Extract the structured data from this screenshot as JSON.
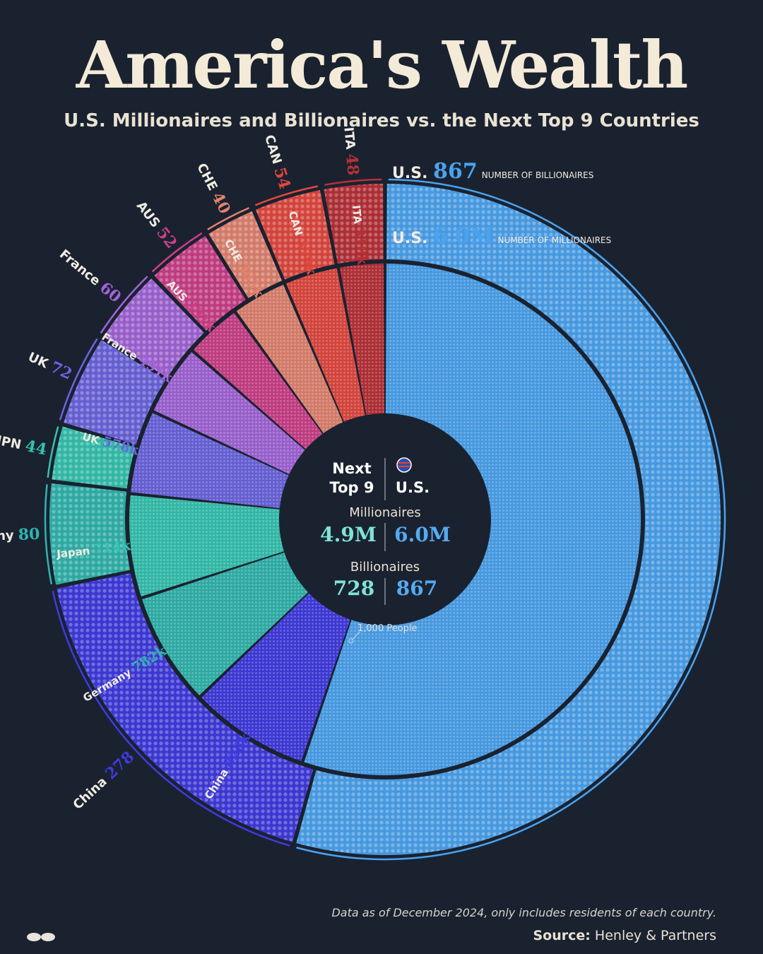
{
  "title": "America's Wealth",
  "subtitle": "U.S. Millionaires and Billionaires vs. the Next Top 9 Countries",
  "footnote": "Data as of December 2024, only includes residents of each country.",
  "source_label": "Source:",
  "source_value": "Henley & Partners",
  "center": {
    "col_left": [
      "Next",
      "Top 9"
    ],
    "col_right": "U.S.",
    "millionaires_label": "Millionaires",
    "millionaires_left": "4.9M",
    "millionaires_right": "6.0M",
    "billionaires_label": "Billionaires",
    "billionaires_left": "728",
    "billionaires_right": "867"
  },
  "dot_annotation": "1,000 People",
  "outer_ring_caption": "NUMBER OF BILLIONAIRES",
  "inner_ring_caption": "NUMBER OF MILLIONAIRES",
  "colors": {
    "background": "#1a2230",
    "us": "#4aa3ef",
    "china": "#3f3ae0",
    "germany": "#2fb5ad",
    "japan": "#33c3b0",
    "uk": "#6a64e0",
    "france": "#a264d8",
    "australia": "#cc3e88",
    "switzerland": "#e2826e",
    "canada": "#e2473d",
    "italy": "#b83036"
  },
  "chart_data": [
    {
      "type": "pie",
      "ring": "outer",
      "title": "NUMBER OF BILLIONAIRES",
      "categories": [
        "U.S.",
        "China",
        "Germany",
        "JPN",
        "UK",
        "France",
        "AUS",
        "CHE",
        "CAN",
        "ITA"
      ],
      "labels": [
        "867",
        "278",
        "80",
        "44",
        "72",
        "60",
        "52",
        "40",
        "54",
        "48"
      ],
      "values": [
        867,
        278,
        80,
        44,
        72,
        60,
        52,
        40,
        54,
        48
      ]
    },
    {
      "type": "pie",
      "ring": "inner",
      "title": "NUMBER OF MILLIONAIRES",
      "categories": [
        "U.S.",
        "China",
        "Germany",
        "Japan",
        "UK",
        "France",
        "AUS",
        "CHE",
        "CAN",
        "ITA"
      ],
      "labels": [
        "6.0M",
        "828k",
        "782k",
        "714k",
        "578k",
        "491k",
        "391k",
        "385k",
        "379k",
        "318k"
      ],
      "values": [
        6000,
        828,
        782,
        714,
        578,
        491,
        391,
        385,
        379,
        318
      ]
    }
  ]
}
